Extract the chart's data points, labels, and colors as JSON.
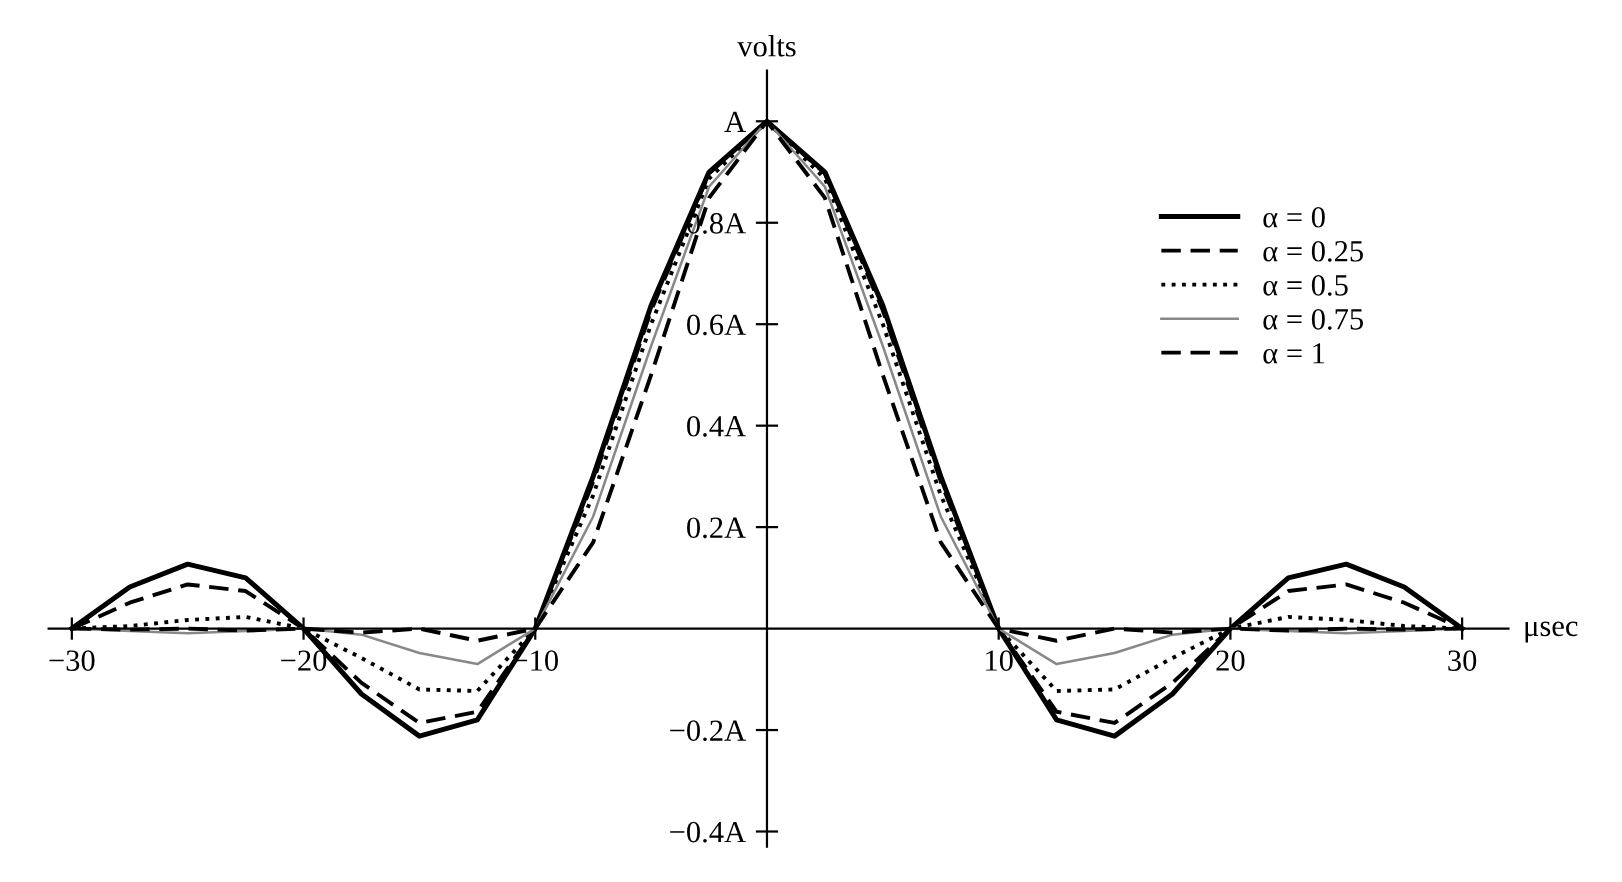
{
  "chart_data": {
    "type": "line",
    "xlabel": "μsec",
    "ylabel": "volts",
    "x": [
      -30,
      -27.5,
      -25,
      -22.5,
      -20,
      -17.5,
      -15,
      -12.5,
      -10,
      -7.5,
      -5,
      -2.5,
      0,
      2.5,
      5,
      7.5,
      10,
      12.5,
      15,
      17.5,
      20,
      22.5,
      25,
      27.5,
      30
    ],
    "series": [
      {
        "name": "α = 0",
        "color": "#000000",
        "line_style": "solid",
        "values": [
          0,
          0.082,
          0.127,
          0.1,
          0,
          -0.129,
          -0.212,
          -0.18,
          0,
          0.3,
          0.637,
          0.9,
          1,
          0.9,
          0.637,
          0.3,
          0,
          -0.18,
          -0.212,
          -0.129,
          0,
          0.1,
          0.127,
          0.082,
          0
        ]
      },
      {
        "name": "α = 0.25",
        "color": "#000000",
        "line_style": "dashed",
        "values": [
          0,
          0.051,
          0.087,
          0.074,
          0,
          -0.107,
          -0.186,
          -0.164,
          0,
          0.29,
          0.627,
          0.897,
          1,
          0.897,
          0.627,
          0.29,
          0,
          -0.164,
          -0.186,
          -0.107,
          0,
          0.074,
          0.087,
          0.051,
          0
        ]
      },
      {
        "name": "α = 0.5",
        "color": "#000000",
        "line_style": "dotted",
        "values": [
          0,
          0.005,
          0.017,
          0.023,
          0,
          -0.058,
          -0.12,
          -0.123,
          0,
          0.263,
          0.6,
          0.887,
          1,
          0.887,
          0.6,
          0.263,
          0,
          -0.123,
          -0.12,
          -0.058,
          0,
          0.023,
          0.017,
          0.005,
          0
        ]
      },
      {
        "name": "α = 0.75",
        "color": "#888888",
        "line_style": "solid",
        "values": [
          0,
          -0.005,
          -0.009,
          -0.005,
          0,
          -0.012,
          -0.048,
          -0.07,
          0,
          0.221,
          0.557,
          0.871,
          1,
          0.871,
          0.557,
          0.221,
          0,
          -0.07,
          -0.048,
          -0.012,
          0,
          -0.005,
          -0.009,
          -0.005,
          0
        ]
      },
      {
        "name": "α = 1",
        "color": "#000000",
        "line_style": "dashed",
        "values": [
          0,
          -0.002,
          0,
          -0.004,
          0,
          -0.008,
          0,
          -0.024,
          0,
          0.17,
          0.5,
          0.849,
          1,
          0.849,
          0.5,
          0.17,
          0,
          -0.024,
          0,
          -0.008,
          0,
          -0.004,
          0,
          -0.002,
          0
        ]
      }
    ],
    "xlim": [
      -31,
      32
    ],
    "ylim": [
      -0.43,
      1.1
    ],
    "xticks": [
      {
        "value": -30,
        "label": "−30"
      },
      {
        "value": -20,
        "label": "−20"
      },
      {
        "value": -10,
        "label": "−10"
      },
      10,
      20,
      30
    ],
    "yticks": [
      {
        "value": -0.4,
        "label": "−0.4A"
      },
      {
        "value": -0.2,
        "label": "−0.2A"
      },
      {
        "value": 0.2,
        "label": "0.2A"
      },
      {
        "value": 0.4,
        "label": "0.4A"
      },
      {
        "value": 0.6,
        "label": "0.6A"
      },
      {
        "value": 0.8,
        "label": "0.8A"
      },
      {
        "value": 1,
        "label": "A"
      }
    ],
    "grid": false,
    "legend": "right"
  }
}
